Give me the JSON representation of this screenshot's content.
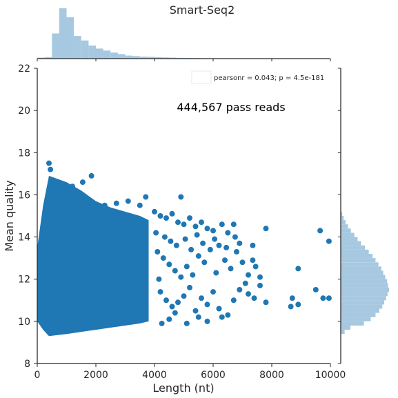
{
  "chart_data": {
    "type": "scatter",
    "title": "Smart-Seq2",
    "xlabel": "Length (nt)",
    "ylabel": "Mean quality",
    "xlim": [
      0,
      10000
    ],
    "ylim": [
      8,
      22
    ],
    "x_ticks": [
      0,
      2000,
      4000,
      6000,
      8000,
      10000
    ],
    "y_ticks": [
      8,
      10,
      12,
      14,
      16,
      18,
      20,
      22
    ],
    "annotation": "444,567 pass reads",
    "legend": {
      "text": "pearsonr = 0.043; p = 4.5e-181",
      "placement": "top-right"
    },
    "grid": false,
    "point_color": "#1f77b4",
    "marginal_color": "#a6c8e0",
    "dense_region": {
      "x_start": 400,
      "upper_boundary": [
        {
          "x": 400,
          "y": 16.9
        },
        {
          "x": 1000,
          "y": 16.6
        },
        {
          "x": 1500,
          "y": 16.2
        },
        {
          "x": 2000,
          "y": 15.7
        },
        {
          "x": 2500,
          "y": 15.4
        },
        {
          "x": 3000,
          "y": 15.2
        },
        {
          "x": 3500,
          "y": 15.0
        },
        {
          "x": 3800,
          "y": 14.8
        }
      ],
      "lower_boundary": [
        {
          "x": 400,
          "y": 9.3
        },
        {
          "x": 1000,
          "y": 9.4
        },
        {
          "x": 1500,
          "y": 9.5
        },
        {
          "x": 2000,
          "y": 9.6
        },
        {
          "x": 2500,
          "y": 9.7
        },
        {
          "x": 3000,
          "y": 9.8
        },
        {
          "x": 3500,
          "y": 9.9
        },
        {
          "x": 3800,
          "y": 10.0
        }
      ],
      "low_tail": [
        {
          "x": 0,
          "y": 10.0
        },
        {
          "x": 200,
          "y": 9.6
        },
        {
          "x": 400,
          "y": 9.3
        }
      ],
      "high_tail": [
        {
          "x": 0,
          "y": 13.5
        },
        {
          "x": 200,
          "y": 15.5
        },
        {
          "x": 400,
          "y": 16.9
        }
      ]
    },
    "points": [
      {
        "x": 400,
        "y": 17.5
      },
      {
        "x": 450,
        "y": 17.2
      },
      {
        "x": 1850,
        "y": 16.9
      },
      {
        "x": 1100,
        "y": 16.1
      },
      {
        "x": 1200,
        "y": 16.4
      },
      {
        "x": 1550,
        "y": 16.6
      },
      {
        "x": 2300,
        "y": 15.5
      },
      {
        "x": 2700,
        "y": 15.6
      },
      {
        "x": 3100,
        "y": 15.7
      },
      {
        "x": 3500,
        "y": 15.5
      },
      {
        "x": 3700,
        "y": 15.9
      },
      {
        "x": 4000,
        "y": 15.2
      },
      {
        "x": 4200,
        "y": 15.0
      },
      {
        "x": 4400,
        "y": 14.9
      },
      {
        "x": 4600,
        "y": 15.1
      },
      {
        "x": 4800,
        "y": 14.7
      },
      {
        "x": 4900,
        "y": 15.9
      },
      {
        "x": 5000,
        "y": 14.6
      },
      {
        "x": 5200,
        "y": 14.9
      },
      {
        "x": 5400,
        "y": 14.5
      },
      {
        "x": 5600,
        "y": 14.7
      },
      {
        "x": 5800,
        "y": 14.4
      },
      {
        "x": 6000,
        "y": 14.3
      },
      {
        "x": 6300,
        "y": 14.6
      },
      {
        "x": 6500,
        "y": 14.2
      },
      {
        "x": 6700,
        "y": 14.6
      },
      {
        "x": 6900,
        "y": 13.7
      },
      {
        "x": 7800,
        "y": 14.4
      },
      {
        "x": 9650,
        "y": 14.3
      },
      {
        "x": 9950,
        "y": 13.8
      },
      {
        "x": 4100,
        "y": 13.3
      },
      {
        "x": 4300,
        "y": 13.0
      },
      {
        "x": 4500,
        "y": 12.7
      },
      {
        "x": 4700,
        "y": 12.4
      },
      {
        "x": 4900,
        "y": 12.1
      },
      {
        "x": 5100,
        "y": 12.6
      },
      {
        "x": 5300,
        "y": 12.2
      },
      {
        "x": 5500,
        "y": 13.1
      },
      {
        "x": 5700,
        "y": 12.8
      },
      {
        "x": 5900,
        "y": 13.4
      },
      {
        "x": 6100,
        "y": 12.3
      },
      {
        "x": 6200,
        "y": 13.6
      },
      {
        "x": 6400,
        "y": 12.9
      },
      {
        "x": 6600,
        "y": 12.5
      },
      {
        "x": 6800,
        "y": 13.3
      },
      {
        "x": 7000,
        "y": 12.8
      },
      {
        "x": 7200,
        "y": 12.2
      },
      {
        "x": 7350,
        "y": 13.6
      },
      {
        "x": 7450,
        "y": 12.6
      },
      {
        "x": 7600,
        "y": 12.1
      },
      {
        "x": 7350,
        "y": 12.9
      },
      {
        "x": 8900,
        "y": 12.5
      },
      {
        "x": 4200,
        "y": 11.4
      },
      {
        "x": 4400,
        "y": 11.0
      },
      {
        "x": 4600,
        "y": 10.7
      },
      {
        "x": 4800,
        "y": 10.9
      },
      {
        "x": 5000,
        "y": 11.2
      },
      {
        "x": 5200,
        "y": 11.6
      },
      {
        "x": 5400,
        "y": 10.5
      },
      {
        "x": 5600,
        "y": 11.1
      },
      {
        "x": 5800,
        "y": 10.8
      },
      {
        "x": 6000,
        "y": 11.4
      },
      {
        "x": 6200,
        "y": 10.6
      },
      {
        "x": 6500,
        "y": 10.3
      },
      {
        "x": 6700,
        "y": 11.0
      },
      {
        "x": 6900,
        "y": 11.5
      },
      {
        "x": 7100,
        "y": 11.8
      },
      {
        "x": 7200,
        "y": 11.3
      },
      {
        "x": 7400,
        "y": 11.1
      },
      {
        "x": 7600,
        "y": 11.7
      },
      {
        "x": 7800,
        "y": 10.9
      },
      {
        "x": 8700,
        "y": 11.1
      },
      {
        "x": 8650,
        "y": 10.7
      },
      {
        "x": 8900,
        "y": 10.8
      },
      {
        "x": 9500,
        "y": 11.5
      },
      {
        "x": 9750,
        "y": 11.1
      },
      {
        "x": 9950,
        "y": 11.1
      },
      {
        "x": 4250,
        "y": 9.9
      },
      {
        "x": 4500,
        "y": 10.1
      },
      {
        "x": 4700,
        "y": 10.4
      },
      {
        "x": 5100,
        "y": 9.9
      },
      {
        "x": 5500,
        "y": 10.2
      },
      {
        "x": 5800,
        "y": 10.0
      },
      {
        "x": 6300,
        "y": 10.2
      },
      {
        "x": 4050,
        "y": 14.2
      },
      {
        "x": 4150,
        "y": 12.0
      },
      {
        "x": 4350,
        "y": 14.0
      },
      {
        "x": 4550,
        "y": 13.8
      },
      {
        "x": 4750,
        "y": 13.6
      },
      {
        "x": 5050,
        "y": 13.9
      },
      {
        "x": 5250,
        "y": 13.4
      },
      {
        "x": 5450,
        "y": 14.1
      },
      {
        "x": 5650,
        "y": 13.7
      },
      {
        "x": 6050,
        "y": 13.9
      },
      {
        "x": 6450,
        "y": 13.5
      },
      {
        "x": 6750,
        "y": 14.0
      }
    ],
    "marginal_x_hist": {
      "bin_width": 250,
      "start": 0,
      "density": [
        0.02,
        0.03,
        0.5,
        1.0,
        0.82,
        0.45,
        0.36,
        0.26,
        0.2,
        0.16,
        0.12,
        0.09,
        0.06,
        0.05,
        0.04,
        0.035,
        0.03,
        0.025,
        0.02,
        0.017,
        0.014,
        0.012,
        0.01,
        0.008,
        0.006,
        0.005,
        0.004,
        0.003,
        0.002,
        0.0015,
        0.001,
        0.001
      ]
    },
    "marginal_y_hist": {
      "bin_width": 0.2,
      "start": 9.4,
      "density": [
        0.08,
        0.2,
        0.48,
        0.62,
        0.72,
        0.8,
        0.86,
        0.9,
        0.94,
        0.97,
        1.0,
        0.98,
        0.96,
        0.92,
        0.88,
        0.84,
        0.78,
        0.72,
        0.66,
        0.58,
        0.5,
        0.42,
        0.35,
        0.28,
        0.21,
        0.15,
        0.1,
        0.06,
        0.03
      ]
    }
  }
}
